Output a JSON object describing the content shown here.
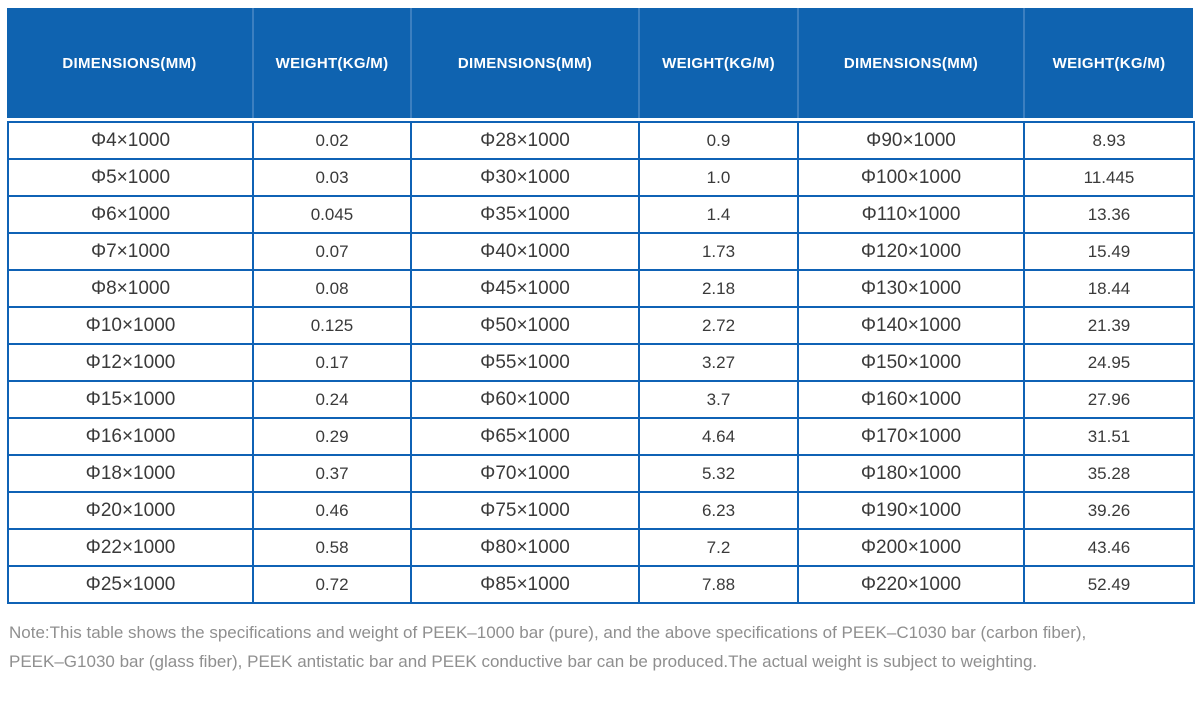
{
  "table": {
    "header_cells": [
      "DIMENSIONS(MM)",
      "WEIGHT(KG/M)",
      "DIMENSIONS(MM)",
      "WEIGHT(KG/M)",
      "DIMENSIONS(MM)",
      "WEIGHT(KG/M)"
    ],
    "rows": [
      [
        "Φ4×1000",
        "0.02",
        "Φ28×1000",
        "0.9",
        "Φ90×1000",
        "8.93"
      ],
      [
        "Φ5×1000",
        "0.03",
        "Φ30×1000",
        "1.0",
        "Φ100×1000",
        "11.445"
      ],
      [
        "Φ6×1000",
        "0.045",
        "Φ35×1000",
        "1.4",
        "Φ110×1000",
        "13.36"
      ],
      [
        "Φ7×1000",
        "0.07",
        "Φ40×1000",
        "1.73",
        "Φ120×1000",
        "15.49"
      ],
      [
        "Φ8×1000",
        "0.08",
        "Φ45×1000",
        "2.18",
        "Φ130×1000",
        "18.44"
      ],
      [
        "Φ10×1000",
        "0.125",
        "Φ50×1000",
        "2.72",
        "Φ140×1000",
        "21.39"
      ],
      [
        "Φ12×1000",
        "0.17",
        "Φ55×1000",
        "3.27",
        "Φ150×1000",
        "24.95"
      ],
      [
        "Φ15×1000",
        "0.24",
        "Φ60×1000",
        "3.7",
        "Φ160×1000",
        "27.96"
      ],
      [
        "Φ16×1000",
        "0.29",
        "Φ65×1000",
        "4.64",
        "Φ170×1000",
        "31.51"
      ],
      [
        "Φ18×1000",
        "0.37",
        "Φ70×1000",
        "5.32",
        "Φ180×1000",
        "35.28"
      ],
      [
        "Φ20×1000",
        "0.46",
        "Φ75×1000",
        "6.23",
        "Φ190×1000",
        "39.26"
      ],
      [
        "Φ22×1000",
        "0.58",
        "Φ80×1000",
        "7.2",
        "Φ200×1000",
        "43.46"
      ],
      [
        "Φ25×1000",
        "0.72",
        "Φ85×1000",
        "7.88",
        "Φ220×1000",
        "52.49"
      ]
    ]
  },
  "note": {
    "line1": "Note:This table shows the specifications and weight of PEEK–1000 bar (pure), and the above specifications of PEEK–C1030 bar (carbon fiber),",
    "line2": "PEEK–G1030 bar (glass fiber), PEEK antistatic bar and PEEK conductive bar can be produced.The actual weight is subject to weighting."
  },
  "colors": {
    "header_bg": "#0f63b0",
    "header_divider": "#3c7fc0",
    "cell_border": "#0f62b5",
    "body_text": "#3a3a3a",
    "note_text": "#8f8f8f"
  }
}
